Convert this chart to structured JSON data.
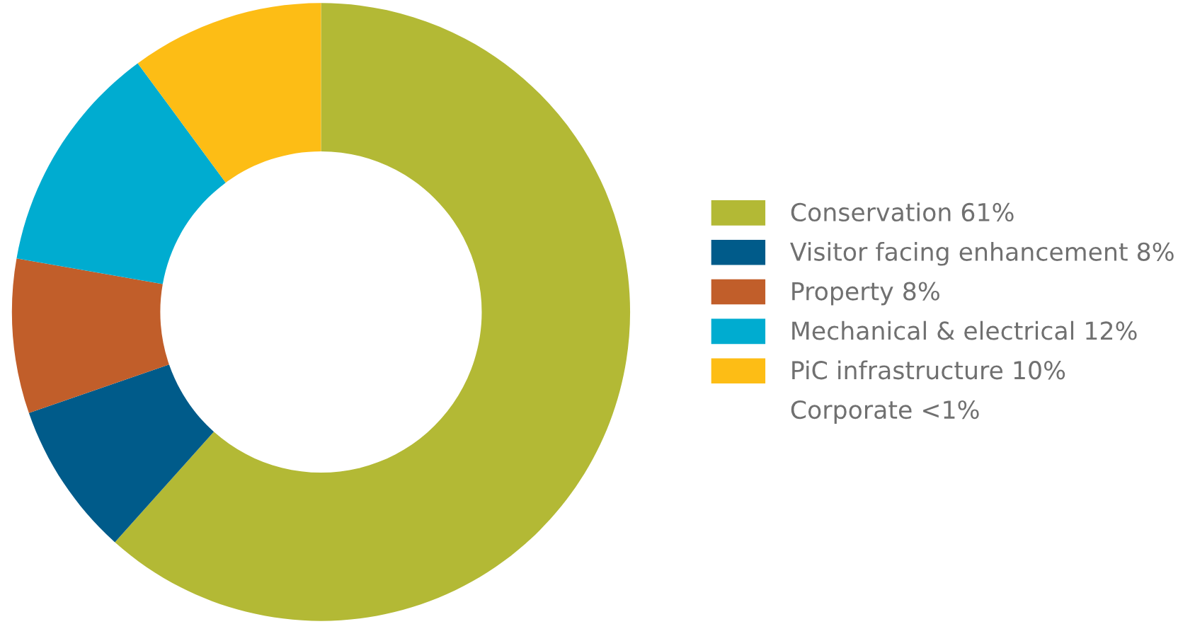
{
  "chart_data": {
    "type": "donut",
    "categories": [
      "Conservation 61%",
      "Visitor facing enhancement 8%",
      "Property 8%",
      "Mechanical & electrical 12%",
      "PiC infrastructure 10%",
      "Corporate <1%"
    ],
    "values": [
      61,
      8,
      8,
      12,
      10,
      null
    ],
    "colors": [
      "#b3b935",
      "#005b8a",
      "#c15e2a",
      "#00acd0",
      "#fdbd15",
      null
    ],
    "legend": "right"
  }
}
